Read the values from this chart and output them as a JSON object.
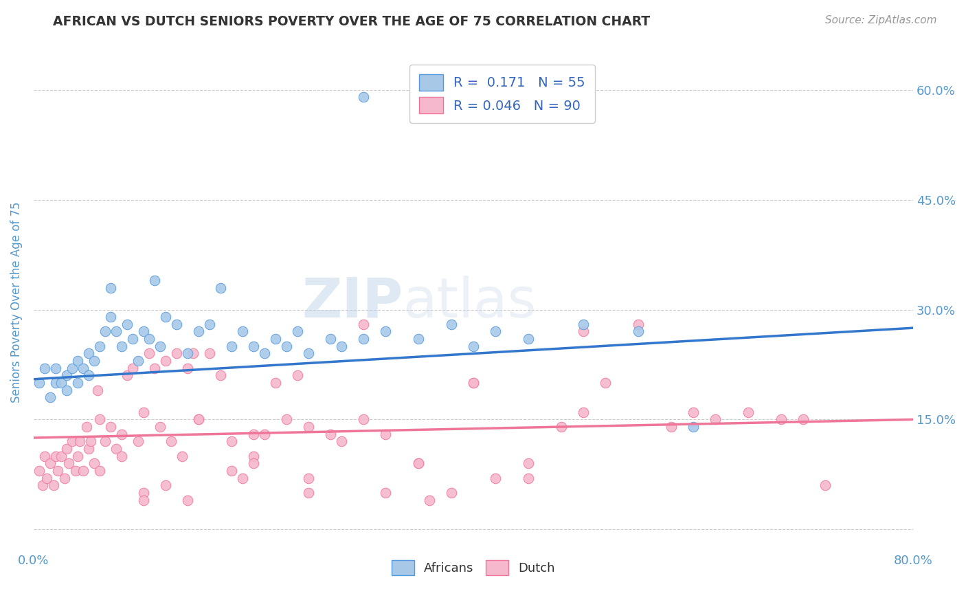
{
  "title": "AFRICAN VS DUTCH SENIORS POVERTY OVER THE AGE OF 75 CORRELATION CHART",
  "source": "Source: ZipAtlas.com",
  "ylabel": "Seniors Poverty Over the Age of 75",
  "xlim": [
    0.0,
    0.8
  ],
  "ylim": [
    -0.03,
    0.65
  ],
  "watermark_zip": "ZIP",
  "watermark_atlas": "atlas",
  "african_color": "#a8c8e8",
  "dutch_color": "#f5b8cc",
  "african_edge_color": "#5599dd",
  "dutch_edge_color": "#ee7799",
  "african_line_color": "#3377cc",
  "dutch_line_color": "#ee7799",
  "african_R": 0.171,
  "african_N": 55,
  "dutch_R": 0.046,
  "dutch_N": 90,
  "title_color": "#333333",
  "source_color": "#999999",
  "axis_label_color": "#5599cc",
  "tick_label_color": "#5599cc",
  "legend_R_color": "#3366bb",
  "grid_color": "#cccccc",
  "background_color": "#ffffff",
  "africans_x": [
    0.005,
    0.01,
    0.015,
    0.02,
    0.02,
    0.025,
    0.03,
    0.03,
    0.035,
    0.04,
    0.04,
    0.045,
    0.05,
    0.05,
    0.055,
    0.06,
    0.065,
    0.07,
    0.07,
    0.075,
    0.08,
    0.085,
    0.09,
    0.095,
    0.1,
    0.105,
    0.11,
    0.115,
    0.12,
    0.13,
    0.14,
    0.15,
    0.16,
    0.17,
    0.18,
    0.19,
    0.2,
    0.21,
    0.22,
    0.23,
    0.24,
    0.25,
    0.27,
    0.28,
    0.3,
    0.32,
    0.35,
    0.38,
    0.4,
    0.42,
    0.45,
    0.5,
    0.55,
    0.6,
    0.3
  ],
  "africans_y": [
    0.2,
    0.22,
    0.18,
    0.2,
    0.22,
    0.2,
    0.21,
    0.19,
    0.22,
    0.2,
    0.23,
    0.22,
    0.24,
    0.21,
    0.23,
    0.25,
    0.27,
    0.33,
    0.29,
    0.27,
    0.25,
    0.28,
    0.26,
    0.23,
    0.27,
    0.26,
    0.34,
    0.25,
    0.29,
    0.28,
    0.24,
    0.27,
    0.28,
    0.33,
    0.25,
    0.27,
    0.25,
    0.24,
    0.26,
    0.25,
    0.27,
    0.24,
    0.26,
    0.25,
    0.26,
    0.27,
    0.26,
    0.28,
    0.25,
    0.27,
    0.26,
    0.28,
    0.27,
    0.14,
    0.59
  ],
  "dutch_x": [
    0.005,
    0.008,
    0.01,
    0.012,
    0.015,
    0.018,
    0.02,
    0.022,
    0.025,
    0.028,
    0.03,
    0.032,
    0.035,
    0.038,
    0.04,
    0.042,
    0.045,
    0.048,
    0.05,
    0.052,
    0.055,
    0.058,
    0.06,
    0.065,
    0.07,
    0.075,
    0.08,
    0.085,
    0.09,
    0.095,
    0.1,
    0.105,
    0.11,
    0.115,
    0.12,
    0.125,
    0.13,
    0.135,
    0.14,
    0.145,
    0.15,
    0.16,
    0.17,
    0.18,
    0.19,
    0.2,
    0.21,
    0.22,
    0.23,
    0.24,
    0.25,
    0.27,
    0.3,
    0.32,
    0.35,
    0.38,
    0.4,
    0.42,
    0.45,
    0.48,
    0.5,
    0.52,
    0.55,
    0.58,
    0.6,
    0.62,
    0.65,
    0.68,
    0.7,
    0.72,
    0.1,
    0.12,
    0.15,
    0.18,
    0.2,
    0.25,
    0.3,
    0.35,
    0.4,
    0.5,
    0.06,
    0.08,
    0.1,
    0.14,
    0.2,
    0.25,
    0.28,
    0.32,
    0.36,
    0.45
  ],
  "dutch_y": [
    0.08,
    0.06,
    0.1,
    0.07,
    0.09,
    0.06,
    0.1,
    0.08,
    0.1,
    0.07,
    0.11,
    0.09,
    0.12,
    0.08,
    0.1,
    0.12,
    0.08,
    0.14,
    0.11,
    0.12,
    0.09,
    0.19,
    0.15,
    0.12,
    0.14,
    0.11,
    0.13,
    0.21,
    0.22,
    0.12,
    0.16,
    0.24,
    0.22,
    0.14,
    0.23,
    0.12,
    0.24,
    0.1,
    0.22,
    0.24,
    0.15,
    0.24,
    0.21,
    0.12,
    0.07,
    0.13,
    0.13,
    0.2,
    0.15,
    0.21,
    0.14,
    0.13,
    0.15,
    0.13,
    0.09,
    0.05,
    0.2,
    0.07,
    0.07,
    0.14,
    0.27,
    0.2,
    0.28,
    0.14,
    0.16,
    0.15,
    0.16,
    0.15,
    0.15,
    0.06,
    0.05,
    0.06,
    0.15,
    0.08,
    0.1,
    0.05,
    0.28,
    0.09,
    0.2,
    0.16,
    0.08,
    0.1,
    0.04,
    0.04,
    0.09,
    0.07,
    0.12,
    0.05,
    0.04,
    0.09
  ]
}
